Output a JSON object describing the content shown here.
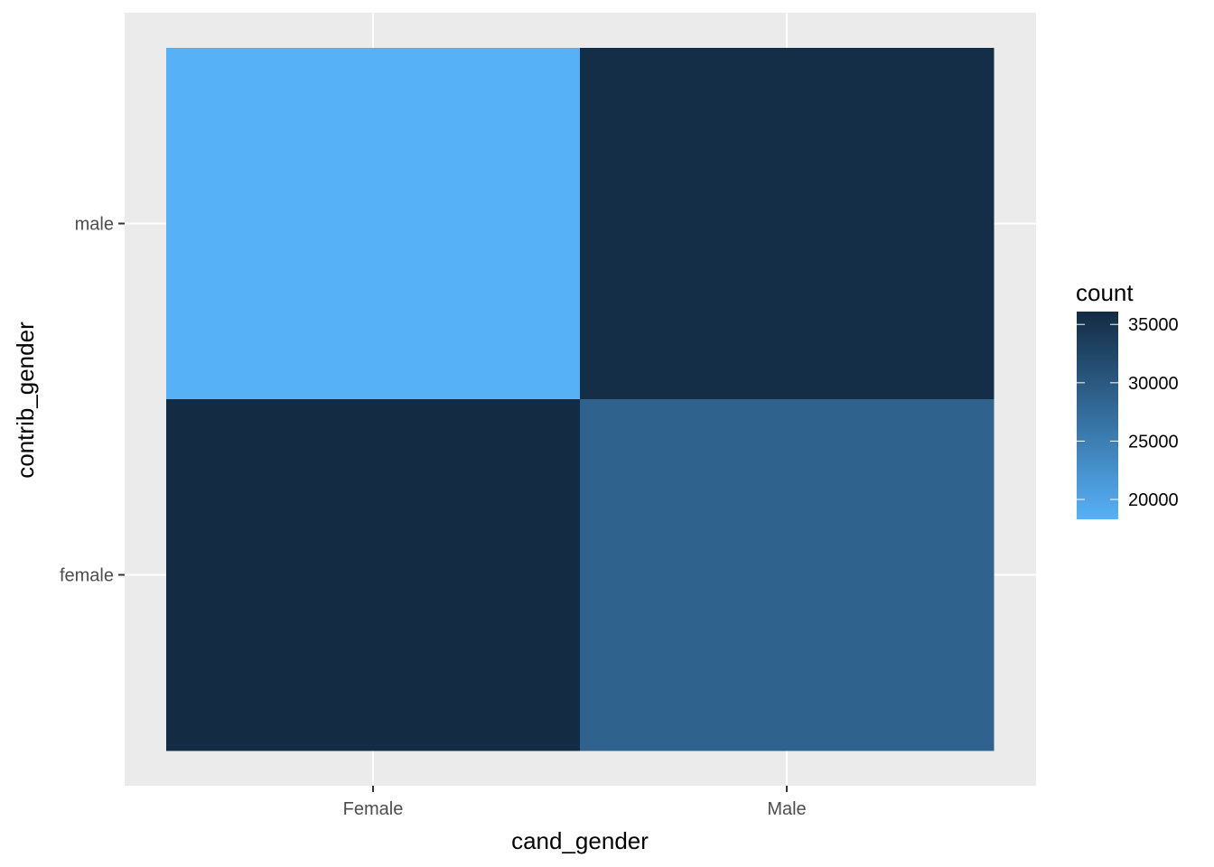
{
  "chart_data": {
    "type": "heatmap",
    "title": "",
    "xlabel": "cand_gender",
    "ylabel": "contrib_gender",
    "x_categories": [
      "Female",
      "Male"
    ],
    "y_categories": [
      "female",
      "male"
    ],
    "cells": [
      {
        "x": "Female",
        "y": "male",
        "value": 18300
      },
      {
        "x": "Male",
        "y": "male",
        "value": 35700
      },
      {
        "x": "Female",
        "y": "female",
        "value": 36100
      },
      {
        "x": "Male",
        "y": "female",
        "value": 28700
      }
    ],
    "grid": true,
    "legend": {
      "title": "count",
      "position": "right",
      "min": 18300,
      "max": 36100,
      "ticks": [
        20000,
        25000,
        30000,
        35000
      ],
      "tick_labels": [
        "20000",
        "25000",
        "30000",
        "35000"
      ],
      "color_low": "#56B1F7",
      "color_high": "#132B43"
    },
    "colors": {
      "panel_background": "#EBEBEB",
      "grid_line": "#FFFFFF",
      "tick_mark": "#333333"
    }
  }
}
